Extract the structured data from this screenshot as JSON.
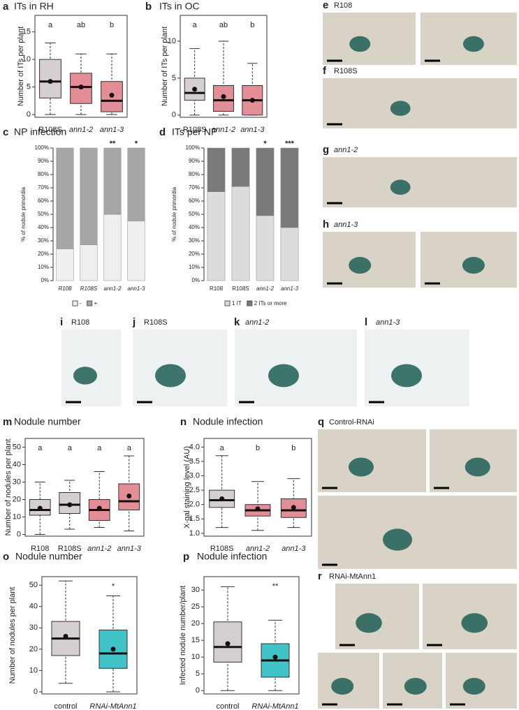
{
  "chart_data": [
    {
      "panel": "a",
      "type": "box",
      "title": "ITs in RH",
      "ylabel": "Number of ITs per plant",
      "categories": [
        "R108S",
        "ann1-2",
        "ann1-3"
      ],
      "italic_categories": [
        false,
        true,
        true
      ],
      "box_colors": [
        "#d6cfcf",
        "#e38d97",
        "#e38d97"
      ],
      "boxes": [
        {
          "min": 0,
          "q1": 3,
          "median": 6,
          "q3": 10,
          "max": 13,
          "mean": 6
        },
        {
          "min": 0,
          "q1": 2,
          "median": 5,
          "q3": 7.5,
          "max": 11,
          "mean": 5
        },
        {
          "min": 0,
          "q1": 0.5,
          "median": 2.5,
          "q3": 6,
          "max": 11,
          "mean": 3.5
        }
      ],
      "letters": [
        "a",
        "ab",
        "b"
      ],
      "ylim": [
        -0.5,
        18
      ],
      "yticks": [
        0,
        5,
        10,
        15
      ]
    },
    {
      "panel": "b",
      "type": "box",
      "title": "ITs in OC",
      "ylabel": "Number of ITs per plant",
      "categories": [
        "R108S",
        "ann1-2",
        "ann1-3"
      ],
      "italic_categories": [
        false,
        true,
        true
      ],
      "box_colors": [
        "#d6cfcf",
        "#e38d97",
        "#e38d97"
      ],
      "boxes": [
        {
          "min": 0,
          "q1": 2,
          "median": 3,
          "q3": 5,
          "max": 9,
          "mean": 3.5
        },
        {
          "min": 0,
          "q1": 0.5,
          "median": 2,
          "q3": 4,
          "max": 10,
          "mean": 2.5
        },
        {
          "min": 0,
          "q1": 0,
          "median": 2,
          "q3": 4,
          "max": 7,
          "mean": 2
        }
      ],
      "letters": [
        "a",
        "ab",
        "b"
      ],
      "ylim": [
        -0.3,
        13.5
      ],
      "yticks": [
        0,
        5,
        10
      ]
    },
    {
      "panel": "c",
      "type": "stacked_bar",
      "title": "NP infection",
      "ylabel": "% of nodule primordia",
      "categories": [
        "R108",
        "R108S",
        "ann1-2",
        "ann1-3"
      ],
      "italic_categories": [
        true,
        true,
        true,
        true
      ],
      "series": [
        {
          "name": "-",
          "color": "#efefef",
          "values": [
            24,
            27,
            50,
            45
          ]
        },
        {
          "name": "+",
          "color": "#a6a6a6",
          "values": [
            76,
            73,
            50,
            55
          ]
        }
      ],
      "significance": [
        null,
        null,
        "**",
        "*"
      ],
      "ylim": [
        0,
        100
      ],
      "yticks": [
        {
          "value": 0,
          "label": "0%"
        },
        {
          "value": 10,
          "label": "10%"
        },
        {
          "value": 20,
          "label": "20%"
        },
        {
          "value": 30,
          "label": "30%"
        },
        {
          "value": 40,
          "label": "40%"
        },
        {
          "value": 50,
          "label": "50%"
        },
        {
          "value": 60,
          "label": "60%"
        },
        {
          "value": 70,
          "label": "70%"
        },
        {
          "value": 80,
          "label": "80%"
        },
        {
          "value": 90,
          "label": "90%"
        },
        {
          "value": 100,
          "label": "100%"
        }
      ]
    },
    {
      "panel": "d",
      "type": "stacked_bar",
      "title": "ITs per NP",
      "ylabel": "% of nodule primordia",
      "categories": [
        "R108",
        "R108S",
        "ann1-2",
        "ann1-3"
      ],
      "italic_categories": [
        false,
        false,
        true,
        true
      ],
      "series": [
        {
          "name": "1 IT",
          "color": "#dcdcdc",
          "values": [
            67,
            71,
            49,
            40
          ]
        },
        {
          "name": "2 ITs or more",
          "color": "#7a7a7a",
          "values": [
            33,
            29,
            51,
            60
          ]
        }
      ],
      "significance": [
        null,
        null,
        "*",
        "***"
      ],
      "ylim": [
        0,
        100
      ],
      "yticks": [
        {
          "value": 0,
          "label": "0%"
        },
        {
          "value": 10,
          "label": "10%"
        },
        {
          "value": 20,
          "label": "20%"
        },
        {
          "value": 30,
          "label": "30%"
        },
        {
          "value": 40,
          "label": "40%"
        },
        {
          "value": 50,
          "label": "50%"
        },
        {
          "value": 60,
          "label": "60%"
        },
        {
          "value": 70,
          "label": "70%"
        },
        {
          "value": 80,
          "label": "80%"
        },
        {
          "value": 90,
          "label": "90%"
        },
        {
          "value": 100,
          "label": "100%"
        }
      ]
    },
    {
      "panel": "m",
      "type": "box",
      "title": "Nodule number",
      "ylabel": "Number of nodules per plant",
      "categories": [
        "R108",
        "R108S",
        "ann1-2",
        "ann1-3"
      ],
      "italic_categories": [
        false,
        false,
        true,
        true
      ],
      "box_colors": [
        "#d6cfcf",
        "#d6cfcf",
        "#e38d97",
        "#e38d97"
      ],
      "boxes": [
        {
          "min": 0,
          "q1": 11,
          "median": 14,
          "q3": 20,
          "max": 30,
          "mean": 15
        },
        {
          "min": 3,
          "q1": 12,
          "median": 17,
          "q3": 24,
          "max": 31,
          "mean": 17
        },
        {
          "min": 4,
          "q1": 8,
          "median": 14,
          "q3": 20,
          "max": 36,
          "mean": 15
        },
        {
          "min": 2,
          "q1": 14,
          "median": 19,
          "q3": 29,
          "max": 45,
          "mean": 22
        }
      ],
      "letters": [
        "a",
        "a",
        "a",
        "a"
      ],
      "ylim": [
        -1,
        55
      ],
      "yticks": [
        0,
        10,
        20,
        30,
        40,
        50
      ]
    },
    {
      "panel": "n",
      "type": "box",
      "title": "Nodule infection",
      "ylabel": "X-gal staining level (AU)",
      "categories": [
        "R108S",
        "ann1-2",
        "ann1-3"
      ],
      "italic_categories": [
        false,
        true,
        true
      ],
      "box_colors": [
        "#d6cfcf",
        "#e38d97",
        "#e38d97"
      ],
      "boxes": [
        {
          "min": 1.2,
          "q1": 1.9,
          "median": 2.15,
          "q3": 2.5,
          "max": 3.7,
          "mean": 2.2
        },
        {
          "min": 1.1,
          "q1": 1.6,
          "median": 1.8,
          "q3": 2.0,
          "max": 2.8,
          "mean": 1.85
        },
        {
          "min": 1.2,
          "q1": 1.55,
          "median": 1.8,
          "q3": 2.2,
          "max": 2.9,
          "mean": 1.9
        }
      ],
      "letters": [
        "a",
        "b",
        "b"
      ],
      "ylim": [
        0.9,
        4.3
      ],
      "yticks": [
        {
          "value": 1,
          "label": "1.0"
        },
        {
          "value": 1.5,
          "label": "1.5"
        },
        {
          "value": 2,
          "label": "2.0"
        },
        {
          "value": 2.5,
          "label": "2.5"
        },
        {
          "value": 3,
          "label": "3.0"
        },
        {
          "value": 3.5,
          "label": "3.5"
        },
        {
          "value": 4,
          "label": "4.0"
        }
      ]
    },
    {
      "panel": "o",
      "type": "box",
      "title": "Nodule number",
      "ylabel": "Number of nodules per plant",
      "categories": [
        "control",
        "RNAi-MtAnn1"
      ],
      "italic_categories": [
        false,
        true
      ],
      "box_colors": [
        "#d6cfcf",
        "#3fc3c6"
      ],
      "boxes": [
        {
          "min": 4,
          "q1": 17,
          "median": 25,
          "q3": 33,
          "max": 52,
          "mean": 26
        },
        {
          "min": 0,
          "q1": 11,
          "median": 18,
          "q3": 29,
          "max": 45,
          "mean": 20
        }
      ],
      "letters": [
        null,
        "*"
      ],
      "ylim": [
        -1,
        54
      ],
      "yticks": [
        0,
        10,
        20,
        30,
        40,
        50
      ]
    },
    {
      "panel": "p",
      "type": "box",
      "title": "Nodule infection",
      "ylabel": "Infected nodule number/plant",
      "categories": [
        "control",
        "RNAi-MtAnn1"
      ],
      "italic_categories": [
        false,
        true
      ],
      "box_colors": [
        "#d6cfcf",
        "#3fc3c6"
      ],
      "boxes": [
        {
          "min": 0,
          "q1": 8.5,
          "median": 13,
          "q3": 20.5,
          "max": 31,
          "mean": 14
        },
        {
          "min": 0,
          "q1": 4,
          "median": 9,
          "q3": 14,
          "max": 21,
          "mean": 10
        }
      ],
      "letters": [
        null,
        "**"
      ],
      "ylim": [
        -1,
        34
      ],
      "yticks": [
        0,
        5,
        10,
        15,
        20,
        25,
        30
      ]
    }
  ],
  "images": [
    {
      "panel": "e",
      "label": "R108",
      "italic": false
    },
    {
      "panel": "f",
      "label": "R108S",
      "italic": false
    },
    {
      "panel": "g",
      "label": "ann1-2",
      "italic": true
    },
    {
      "panel": "h",
      "label": "ann1-3",
      "italic": true
    },
    {
      "panel": "i",
      "label": "R108",
      "italic": false
    },
    {
      "panel": "j",
      "label": "R108S",
      "italic": false
    },
    {
      "panel": "k",
      "label": "ann1-2",
      "italic": true
    },
    {
      "panel": "l",
      "label": "ann1-3",
      "italic": true
    },
    {
      "panel": "q",
      "label": "Control-RNAi",
      "italic": false
    },
    {
      "panel": "r",
      "label": "RNAi-MtAnn1",
      "italic": false
    }
  ]
}
